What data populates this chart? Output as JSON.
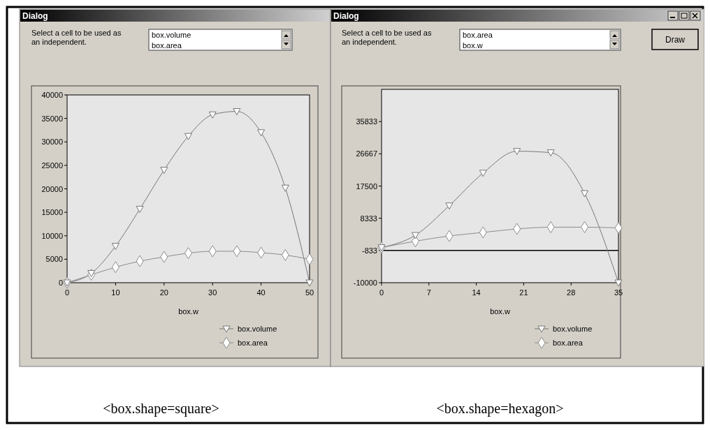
{
  "chart_data": [
    {
      "type": "line",
      "title": "Dialog",
      "xlabel": "box.w",
      "x": [
        0,
        5,
        10,
        15,
        20,
        25,
        30,
        35,
        40,
        45,
        50
      ],
      "xlim": [
        0,
        50
      ],
      "xticks": [
        0,
        10,
        20,
        30,
        40,
        50
      ],
      "ylim": [
        0,
        40000
      ],
      "yticks": [
        0,
        5000,
        10000,
        15000,
        20000,
        25000,
        30000,
        35000,
        40000
      ],
      "legend": "bottom right",
      "grid": false,
      "series": [
        {
          "name": "box.volume",
          "color": "#777777",
          "marker": "triangle",
          "values": [
            0,
            2000,
            7800,
            15700,
            24000,
            31200,
            35800,
            36500,
            32000,
            20200,
            0
          ]
        },
        {
          "name": "box.area",
          "color": "#8c8c8c",
          "marker": "diamond",
          "values": [
            0,
            1700,
            3300,
            4600,
            5500,
            6300,
            6700,
            6700,
            6400,
            5900,
            5000
          ]
        }
      ],
      "annotations": [
        "Select a cell to be used as\nan independent.",
        "box.volume",
        "box.area",
        "<box.shape=square>"
      ]
    },
    {
      "type": "line",
      "title": "Dialog",
      "xlabel": "box.w",
      "x": [
        0,
        5,
        10,
        15,
        20,
        25,
        30,
        35
      ],
      "xlim": [
        0,
        35
      ],
      "xticks": [
        0,
        7,
        14,
        21,
        28,
        35
      ],
      "ylim": [
        -10000,
        45000
      ],
      "yticks": [
        -10000,
        -833,
        8333,
        17500,
        26667,
        35833
      ],
      "legend": "bottom right",
      "grid": false,
      "ref_lines": [
        {
          "axis": "y",
          "value": -833,
          "color": "#000000"
        }
      ],
      "series": [
        {
          "name": "box.volume",
          "color": "#777777",
          "marker": "triangle",
          "values": [
            0,
            3500,
            11900,
            21200,
            27400,
            27000,
            15400,
            -10000
          ]
        },
        {
          "name": "box.area",
          "color": "#8c8c8c",
          "marker": "diamond",
          "values": [
            0,
            1800,
            3300,
            4300,
            5300,
            5800,
            5800,
            5600
          ]
        }
      ],
      "annotations": [
        "Select a cell to be used as\nan independent.",
        "box.area",
        "box.w",
        "Draw",
        "<box.shape=hexagon>"
      ]
    }
  ]
}
